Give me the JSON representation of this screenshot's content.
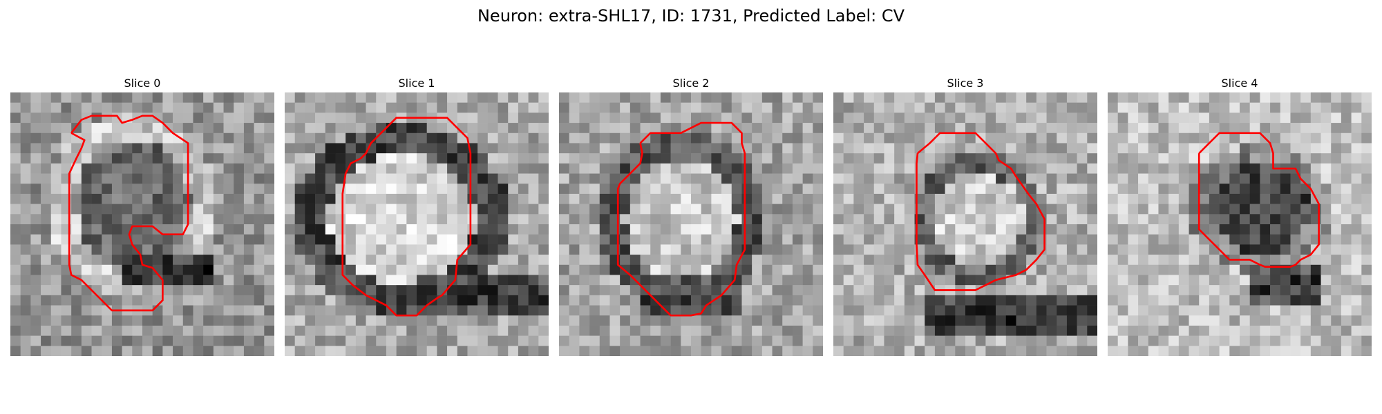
{
  "figure": {
    "title": "Neuron: extra-SHL17, ID: 1731, Predicted Label: CV"
  },
  "style": {
    "contour_color": "#ff0000"
  },
  "slices": [
    {
      "title": "Slice 0"
    },
    {
      "title": "Slice 1"
    },
    {
      "title": "Slice 2"
    },
    {
      "title": "Slice 3"
    },
    {
      "title": "Slice 4"
    }
  ]
}
